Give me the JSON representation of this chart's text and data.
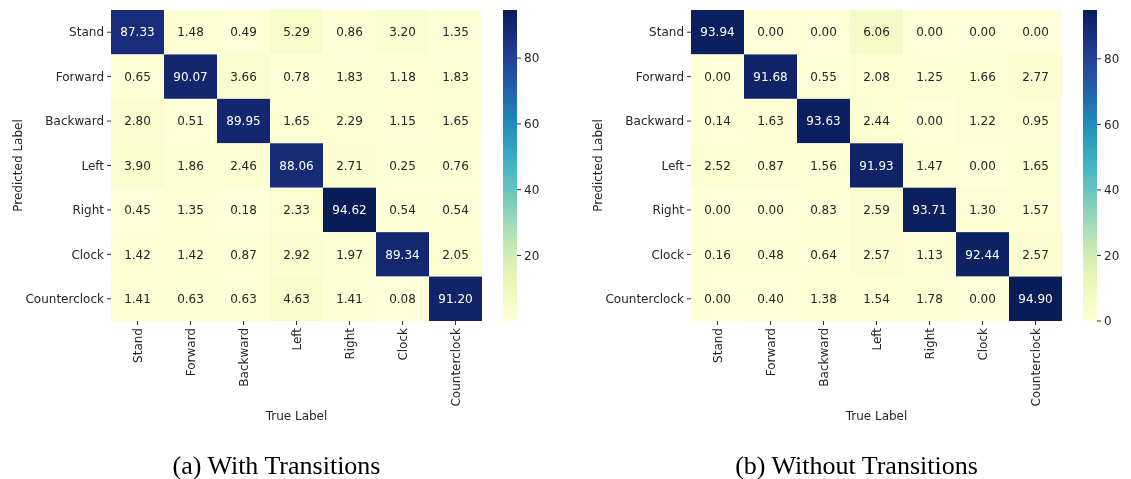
{
  "chart_data": [
    {
      "type": "heatmap",
      "title": "(a) With Transitions",
      "xlabel": "True Label",
      "ylabel": "Predicted Label",
      "categories": [
        "Stand",
        "Forward",
        "Backward",
        "Left",
        "Right",
        "Clock",
        "Counterclock"
      ],
      "y_categories": [
        "Stand",
        "Forward",
        "Backward",
        "Left",
        "Right",
        "Clock",
        "Counterclock"
      ],
      "cells": [
        [
          87.33,
          1.48,
          0.49,
          5.29,
          0.86,
          3.2,
          1.35
        ],
        [
          0.65,
          90.07,
          3.66,
          0.78,
          1.83,
          1.18,
          1.83
        ],
        [
          2.8,
          0.51,
          89.95,
          1.65,
          2.29,
          1.15,
          1.65
        ],
        [
          3.9,
          1.86,
          2.46,
          88.06,
          2.71,
          0.25,
          0.76
        ],
        [
          0.45,
          1.35,
          0.18,
          2.33,
          94.62,
          0.54,
          0.54
        ],
        [
          1.42,
          1.42,
          0.87,
          2.92,
          1.97,
          89.34,
          2.05
        ],
        [
          1.41,
          0.63,
          0.63,
          4.63,
          1.41,
          0.08,
          91.2
        ]
      ],
      "cell_labels": [
        [
          "87.33",
          "1.48",
          "0.49",
          "5.29",
          "0.86",
          "3.20",
          "1.35"
        ],
        [
          "0.65",
          "90.07",
          "3.66",
          "0.78",
          "1.83",
          "1.18",
          "1.83"
        ],
        [
          "2.80",
          "0.51",
          "89.95",
          "1.65",
          "2.29",
          "1.15",
          "1.65"
        ],
        [
          "3.90",
          "1.86",
          "2.46",
          "88.06",
          "2.71",
          "0.25",
          "0.76"
        ],
        [
          "0.45",
          "1.35",
          "0.18",
          "2.33",
          "94.62",
          "0.54",
          "0.54"
        ],
        [
          "1.42",
          "1.42",
          "0.87",
          "2.92",
          "1.97",
          "89.34",
          "2.05"
        ],
        [
          "1.41",
          "0.63",
          "0.63",
          "4.63",
          "1.41",
          "0.08",
          "91.20"
        ]
      ],
      "clim": [
        0.08,
        94.62
      ],
      "cticks": [
        20,
        40,
        60,
        80
      ]
    },
    {
      "type": "heatmap",
      "title": "(b) Without Transitions",
      "xlabel": "True Label",
      "ylabel": "Predicted Label",
      "categories": [
        "Stand",
        "Forward",
        "Backward",
        "Left",
        "Right",
        "Clock",
        "Counterclock"
      ],
      "y_categories": [
        "Stand",
        "Forward",
        "Backward",
        "Left",
        "Right",
        "Clock",
        "Counterclock"
      ],
      "cells": [
        [
          93.94,
          0,
          0,
          6.06,
          0,
          0,
          0
        ],
        [
          0,
          91.68,
          0.55,
          2.08,
          1.25,
          1.66,
          2.77
        ],
        [
          0.14,
          1.63,
          93.63,
          2.44,
          0,
          1.22,
          0.95
        ],
        [
          2.52,
          0.87,
          1.56,
          91.93,
          1.47,
          0,
          1.65
        ],
        [
          0,
          0,
          0.83,
          2.59,
          93.71,
          1.3,
          1.57
        ],
        [
          0.16,
          0.48,
          0.64,
          2.57,
          1.13,
          92.44,
          2.57
        ],
        [
          0,
          0.4,
          1.38,
          1.54,
          1.78,
          0,
          94.9
        ]
      ],
      "cell_labels": [
        [
          "93.94",
          "0.00",
          "0.00",
          "6.06",
          "0.00",
          "0.00",
          "0.00"
        ],
        [
          "0.00",
          "91.68",
          "0.55",
          "2.08",
          "1.25",
          "1.66",
          "2.77"
        ],
        [
          "0.14",
          "1.63",
          "93.63",
          "2.44",
          "0.00",
          "1.22",
          "0.95"
        ],
        [
          "2.52",
          "0.87",
          "1.56",
          "91.93",
          "1.47",
          "0.00",
          "1.65"
        ],
        [
          "0.00",
          "0.00",
          "0.83",
          "2.59",
          "93.71",
          "1.30",
          "1.57"
        ],
        [
          "0.16",
          "0.48",
          "0.64",
          "2.57",
          "1.13",
          "92.44",
          "2.57"
        ],
        [
          "0.00",
          "0.40",
          "1.38",
          "1.54",
          "1.78",
          "0.00",
          "94.90"
        ]
      ],
      "clim": [
        0,
        94.9
      ],
      "cticks": [
        0,
        20,
        40,
        60,
        80
      ]
    }
  ]
}
